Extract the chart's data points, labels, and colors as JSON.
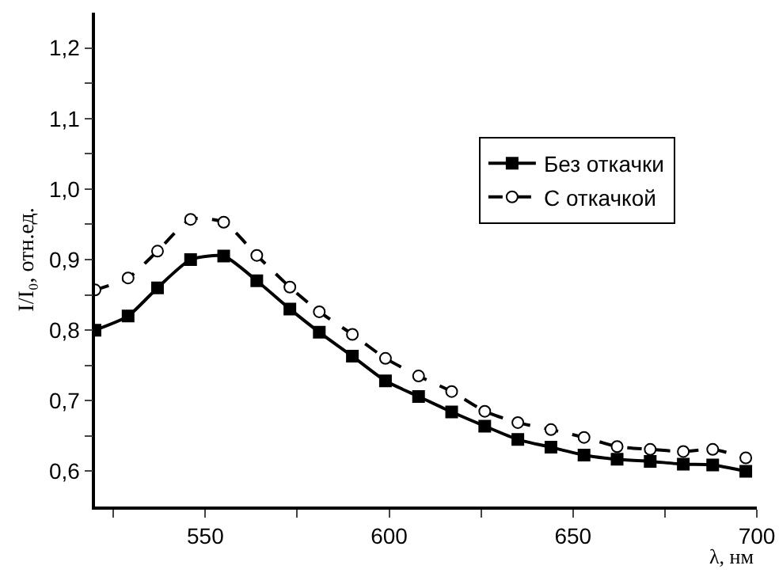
{
  "chart_data": {
    "type": "line",
    "xlabel": "λ, нм",
    "ylabel": "I/I₀, отн.ед.",
    "x": [
      520,
      529,
      537,
      546,
      555,
      564,
      573,
      581,
      590,
      599,
      608,
      617,
      626,
      635,
      644,
      653,
      662,
      671,
      680,
      688,
      697
    ],
    "series": [
      {
        "name": "Без откачки",
        "color": "#000000",
        "marker": "square",
        "line_style": "solid",
        "values": [
          0.8,
          0.82,
          0.86,
          0.9,
          0.905,
          0.87,
          0.83,
          0.797,
          0.763,
          0.728,
          0.706,
          0.684,
          0.664,
          0.645,
          0.634,
          0.623,
          0.617,
          0.614,
          0.61,
          0.609,
          0.6
        ]
      },
      {
        "name": "С откачкой",
        "color": "#000000",
        "marker": "circle",
        "line_style": "dashed",
        "values": [
          0.857,
          0.874,
          0.912,
          0.957,
          0.953,
          0.906,
          0.861,
          0.826,
          0.794,
          0.76,
          0.735,
          0.713,
          0.685,
          0.669,
          0.659,
          0.648,
          0.635,
          0.631,
          0.628,
          0.631,
          0.619
        ]
      }
    ],
    "xlim": [
      520,
      700
    ],
    "xticks": [
      {
        "value": 525,
        "label": null
      },
      550,
      {
        "value": 575,
        "label": null
      },
      600,
      {
        "value": 625,
        "label": null
      },
      650,
      {
        "value": 675,
        "label": null
      },
      700
    ],
    "ylim": [
      0.55,
      1.25
    ],
    "yticks": [
      {
        "value": 0.6,
        "label": "0,6"
      },
      {
        "value": 0.65,
        "label": null
      },
      {
        "value": 0.7,
        "label": "0,7"
      },
      {
        "value": 0.75,
        "label": null
      },
      {
        "value": 0.8,
        "label": "0,8"
      },
      {
        "value": 0.85,
        "label": null
      },
      {
        "value": 0.9,
        "label": "0,9"
      },
      {
        "value": 0.95,
        "label": null
      },
      {
        "value": 1.0,
        "label": "1,0"
      },
      {
        "value": 1.05,
        "label": null
      },
      {
        "value": 1.1,
        "label": "1,1"
      },
      {
        "value": 1.15,
        "label": null
      },
      {
        "value": 1.2,
        "label": "1,2"
      }
    ],
    "grid": false,
    "legend": "right"
  }
}
